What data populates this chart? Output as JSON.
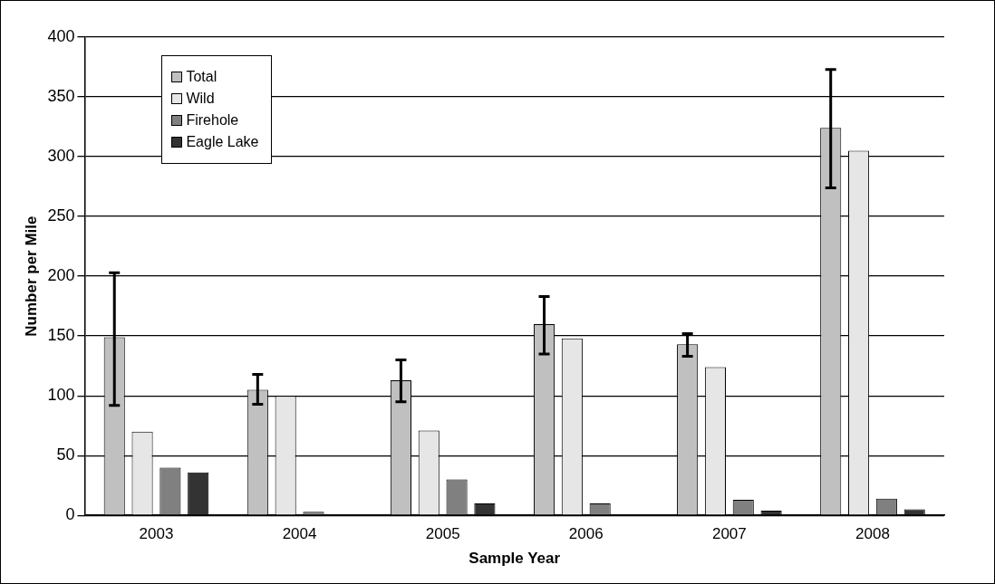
{
  "chart_data": {
    "type": "bar",
    "xlabel": "Sample Year",
    "ylabel": "Number per Mile",
    "categories": [
      "2003",
      "2004",
      "2005",
      "2006",
      "2007",
      "2008"
    ],
    "series": [
      {
        "name": "Total",
        "color": "#c0c0c0",
        "values": [
          149,
          105,
          113,
          160,
          143,
          324
        ],
        "errors": [
          [
            92,
            203
          ],
          [
            93,
            118
          ],
          [
            95,
            130
          ],
          [
            135,
            183
          ],
          [
            133,
            152
          ],
          [
            274,
            373
          ]
        ]
      },
      {
        "name": "Wild",
        "color": "#e6e6e6",
        "values": [
          70,
          100,
          71,
          148,
          124,
          305
        ]
      },
      {
        "name": "Firehole",
        "color": "#808080",
        "values": [
          40,
          3,
          30,
          10,
          13,
          14
        ]
      },
      {
        "name": "Eagle Lake",
        "color": "#333333",
        "values": [
          36,
          0,
          10,
          0,
          4,
          5
        ]
      }
    ],
    "ylim": [
      0,
      400
    ],
    "yticks": [
      0,
      50,
      100,
      150,
      200,
      250,
      300,
      350,
      400
    ],
    "grid": "y",
    "legend": "top left"
  }
}
